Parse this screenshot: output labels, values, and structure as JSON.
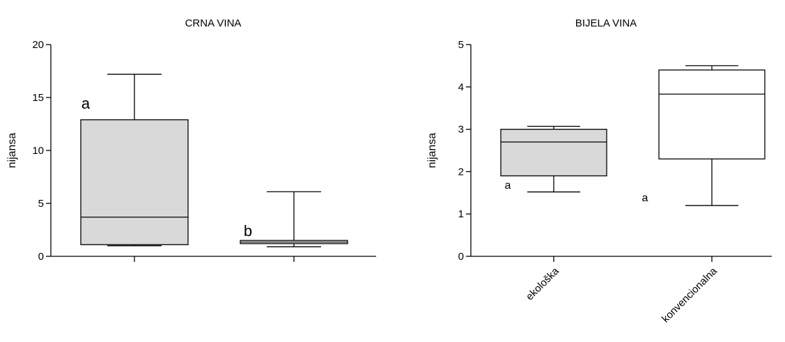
{
  "chart_data": [
    {
      "type": "box",
      "title": "CRNA VINA",
      "ylabel": "nijansa",
      "xlabel": "",
      "ylim": [
        0,
        20
      ],
      "yticks": [
        0,
        5,
        10,
        15,
        20
      ],
      "grid": false,
      "legend": "none",
      "categories": [
        "",
        ""
      ],
      "boxes": [
        {
          "min": 1.0,
          "q1": 1.1,
          "median": 3.7,
          "q3": 12.9,
          "max": 17.2,
          "fill": "#d9d9d9",
          "letter": "a"
        },
        {
          "min": 0.9,
          "q1": 1.2,
          "median": 1.35,
          "q3": 1.5,
          "max": 6.1,
          "fill": "#ffffff",
          "letter": "b"
        }
      ]
    },
    {
      "type": "box",
      "title": "BIJELA VINA",
      "ylabel": "nijansa",
      "xlabel": "",
      "ylim": [
        0,
        5
      ],
      "yticks": [
        0,
        1,
        2,
        3,
        4,
        5
      ],
      "grid": false,
      "legend": "none",
      "categories": [
        "ekološka",
        "konvencionalna"
      ],
      "boxes": [
        {
          "min": 1.52,
          "q1": 1.9,
          "median": 2.7,
          "q3": 3.0,
          "max": 3.07,
          "fill": "#d9d9d9",
          "letter": "a"
        },
        {
          "min": 1.2,
          "q1": 2.3,
          "median": 3.83,
          "q3": 4.4,
          "max": 4.5,
          "fill": "#ffffff",
          "letter": "a"
        }
      ]
    }
  ]
}
